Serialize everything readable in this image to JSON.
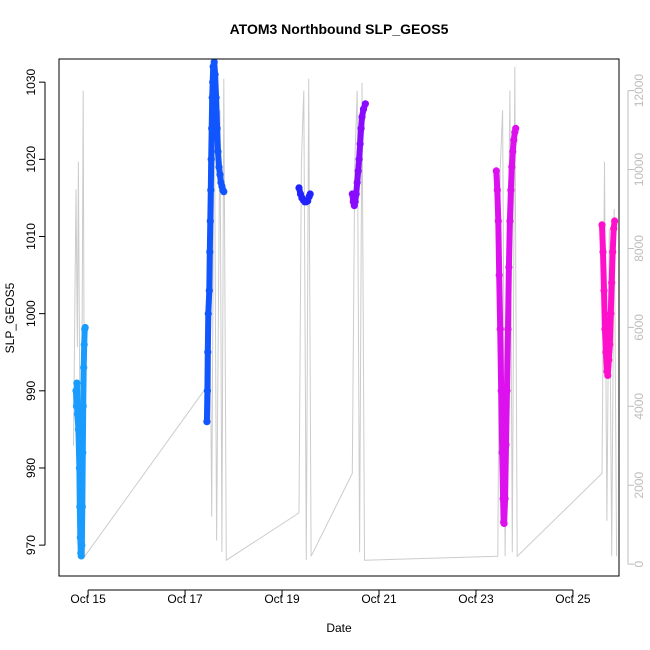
{
  "chart_data": {
    "type": "scatter",
    "title": "ATOM3 Northbound SLP_GEOS5",
    "xlabel": "Date",
    "ylabel": "SLP_GEOS5",
    "x_range_days": [
      14.4,
      25.95
    ],
    "ylim": [
      966,
      1033
    ],
    "y2lim": [
      -300,
      12800
    ],
    "x_ticks": [
      {
        "value": 15,
        "label": "Oct 15"
      },
      {
        "value": 17,
        "label": "Oct 17"
      },
      {
        "value": 19,
        "label": "Oct 19"
      },
      {
        "value": 21,
        "label": "Oct 21"
      },
      {
        "value": 23,
        "label": "Oct 23"
      },
      {
        "value": 25,
        "label": "Oct 25"
      }
    ],
    "y_ticks": [
      970,
      980,
      990,
      1000,
      1010,
      1020,
      1030
    ],
    "y2_ticks": [
      0,
      2000,
      4000,
      6000,
      8000,
      10000,
      12000
    ],
    "altitude_trace": {
      "color": "#cccccc",
      "points": [
        [
          14.7,
          3000
        ],
        [
          14.75,
          9500
        ],
        [
          14.78,
          5500
        ],
        [
          14.8,
          10200
        ],
        [
          14.83,
          4000
        ],
        [
          14.86,
          1500
        ],
        [
          14.9,
          12000
        ],
        [
          14.93,
          200
        ],
        [
          17.45,
          4500
        ],
        [
          17.5,
          9000
        ],
        [
          17.55,
          1200
        ],
        [
          17.6,
          12400
        ],
        [
          17.65,
          600
        ],
        [
          17.72,
          11500
        ],
        [
          17.76,
          300
        ],
        [
          17.8,
          12300
        ],
        [
          17.85,
          100
        ],
        [
          19.35,
          1300
        ],
        [
          19.4,
          10200
        ],
        [
          19.45,
          12000
        ],
        [
          19.5,
          100
        ],
        [
          19.55,
          12300
        ],
        [
          19.6,
          200
        ],
        [
          20.45,
          2300
        ],
        [
          20.5,
          10200
        ],
        [
          20.55,
          12000
        ],
        [
          20.6,
          300
        ],
        [
          20.65,
          12200
        ],
        [
          20.7,
          100
        ],
        [
          23.45,
          200
        ],
        [
          23.5,
          10000
        ],
        [
          23.55,
          11500
        ],
        [
          23.6,
          200
        ],
        [
          23.7,
          12000
        ],
        [
          23.75,
          300
        ],
        [
          23.8,
          12600
        ],
        [
          23.85,
          200
        ],
        [
          25.6,
          2300
        ],
        [
          25.65,
          10200
        ],
        [
          25.7,
          1100
        ],
        [
          25.75,
          8500
        ],
        [
          25.8,
          200
        ],
        [
          25.85,
          9000
        ],
        [
          25.9,
          200
        ]
      ]
    },
    "series": [
      {
        "name": "",
        "color": "#1a9cff",
        "points": [
          [
            14.75,
            990
          ],
          [
            14.76,
            988
          ],
          [
            14.77,
            991
          ],
          [
            14.78,
            987
          ],
          [
            14.8,
            985
          ],
          [
            14.82,
            980
          ],
          [
            14.83,
            975
          ],
          [
            14.84,
            971
          ],
          [
            14.85,
            969
          ],
          [
            14.86,
            968.6
          ],
          [
            14.87,
            970
          ],
          [
            14.88,
            975
          ],
          [
            14.89,
            982
          ],
          [
            14.9,
            988
          ],
          [
            14.91,
            993
          ],
          [
            14.92,
            996
          ],
          [
            14.93,
            998
          ],
          [
            14.94,
            998.2
          ]
        ]
      },
      {
        "name": "",
        "color": "#1155ff",
        "points": [
          [
            17.45,
            986
          ],
          [
            17.46,
            990
          ],
          [
            17.47,
            995
          ],
          [
            17.48,
            1000
          ],
          [
            17.5,
            1003
          ],
          [
            17.51,
            1008
          ],
          [
            17.52,
            1012
          ],
          [
            17.53,
            1016
          ],
          [
            17.54,
            1020
          ],
          [
            17.55,
            1024
          ],
          [
            17.56,
            1028
          ],
          [
            17.57,
            1030
          ],
          [
            17.58,
            1032
          ],
          [
            17.6,
            1032.6
          ],
          [
            17.62,
            1031
          ],
          [
            17.64,
            1028
          ],
          [
            17.66,
            1024
          ],
          [
            17.68,
            1021
          ],
          [
            17.7,
            1019
          ],
          [
            17.72,
            1018
          ],
          [
            17.74,
            1017
          ],
          [
            17.76,
            1016.5
          ],
          [
            17.78,
            1016
          ],
          [
            17.8,
            1015.8
          ]
        ]
      },
      {
        "name": "",
        "color": "#2222ff",
        "points": [
          [
            19.35,
            1016.3
          ],
          [
            19.38,
            1015.5
          ],
          [
            19.41,
            1015
          ],
          [
            19.44,
            1014.7
          ],
          [
            19.47,
            1014.5
          ],
          [
            19.5,
            1014.5
          ],
          [
            19.53,
            1014.6
          ],
          [
            19.56,
            1015.2
          ],
          [
            19.58,
            1015.5
          ]
        ]
      },
      {
        "name": "",
        "color": "#8a0cff",
        "points": [
          [
            20.45,
            1015.5
          ],
          [
            20.47,
            1014.5
          ],
          [
            20.49,
            1014
          ],
          [
            20.51,
            1014.5
          ],
          [
            20.53,
            1015.5
          ],
          [
            20.55,
            1017
          ],
          [
            20.57,
            1018.5
          ],
          [
            20.59,
            1020
          ],
          [
            20.61,
            1022
          ],
          [
            20.63,
            1024
          ],
          [
            20.65,
            1025.5
          ],
          [
            20.68,
            1026.5
          ],
          [
            20.72,
            1027.2
          ]
        ]
      },
      {
        "name": "",
        "color": "#dd11ee",
        "points": [
          [
            23.42,
            1018.5
          ],
          [
            23.44,
            1016
          ],
          [
            23.46,
            1012
          ],
          [
            23.48,
            1005
          ],
          [
            23.5,
            998
          ],
          [
            23.52,
            990
          ],
          [
            23.54,
            982
          ],
          [
            23.56,
            976
          ],
          [
            23.57,
            973
          ],
          [
            23.58,
            972.8
          ],
          [
            23.6,
            976
          ],
          [
            23.62,
            983
          ],
          [
            23.64,
            990
          ],
          [
            23.66,
            998
          ],
          [
            23.68,
            1006
          ],
          [
            23.7,
            1012
          ],
          [
            23.72,
            1016
          ],
          [
            23.74,
            1019
          ],
          [
            23.76,
            1021
          ],
          [
            23.78,
            1022.5
          ],
          [
            23.8,
            1023.5
          ],
          [
            23.82,
            1024
          ]
        ]
      },
      {
        "name": "",
        "color": "#ff11cc",
        "points": [
          [
            25.6,
            1011.5
          ],
          [
            25.62,
            1008
          ],
          [
            25.64,
            1003
          ],
          [
            25.66,
            998
          ],
          [
            25.68,
            995
          ],
          [
            25.7,
            992.5
          ],
          [
            25.72,
            992
          ],
          [
            25.74,
            994
          ],
          [
            25.76,
            996
          ],
          [
            25.78,
            1000
          ],
          [
            25.8,
            1004
          ],
          [
            25.82,
            1008
          ],
          [
            25.84,
            1011
          ],
          [
            25.86,
            1012
          ]
        ]
      }
    ]
  }
}
